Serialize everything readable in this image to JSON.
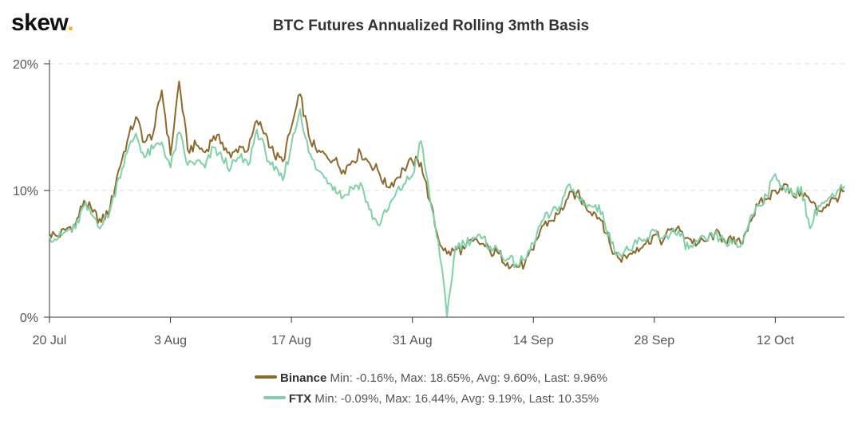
{
  "brand": {
    "name": "skew",
    "dot": "."
  },
  "chart_data": {
    "type": "line",
    "title": "BTC Futures Annualized Rolling 3mth Basis",
    "xlabel": "",
    "ylabel": "",
    "x_ticks": [
      "20 Jul",
      "3 Aug",
      "17 Aug",
      "31 Aug",
      "14 Sep",
      "28 Sep",
      "12 Oct"
    ],
    "x_range": [
      "2020-07-20",
      "2020-10-20"
    ],
    "y_ticks": [
      "0%",
      "10%",
      "20%"
    ],
    "ylim": [
      0,
      20
    ],
    "grid": "horizontal dashed",
    "legend_position": "bottom",
    "series": [
      {
        "name": "Binance",
        "color": "#8c6a2a",
        "stats": "Min: -0.16%, Max: 18.65%, Avg: 9.60%, Last: 9.96%",
        "points": [
          [
            "2020-07-20",
            6.6
          ],
          [
            "2020-07-21",
            6.4
          ],
          [
            "2020-07-22",
            7.0
          ],
          [
            "2020-07-23",
            7.3
          ],
          [
            "2020-07-24",
            9.2
          ],
          [
            "2020-07-25",
            8.3
          ],
          [
            "2020-07-26",
            7.5
          ],
          [
            "2020-07-27",
            8.6
          ],
          [
            "2020-07-28",
            11.6
          ],
          [
            "2020-07-29",
            13.9
          ],
          [
            "2020-07-30",
            15.8
          ],
          [
            "2020-07-31",
            13.8
          ],
          [
            "2020-08-01",
            14.5
          ],
          [
            "2020-08-02",
            17.9
          ],
          [
            "2020-08-03",
            12.8
          ],
          [
            "2020-08-04",
            18.6
          ],
          [
            "2020-08-05",
            13.2
          ],
          [
            "2020-08-06",
            13.6
          ],
          [
            "2020-08-07",
            13.0
          ],
          [
            "2020-08-08",
            14.3
          ],
          [
            "2020-08-09",
            13.8
          ],
          [
            "2020-08-10",
            12.6
          ],
          [
            "2020-08-11",
            13.5
          ],
          [
            "2020-08-12",
            13.2
          ],
          [
            "2020-08-13",
            15.5
          ],
          [
            "2020-08-14",
            14.5
          ],
          [
            "2020-08-15",
            12.8
          ],
          [
            "2020-08-16",
            12.3
          ],
          [
            "2020-08-17",
            15.0
          ],
          [
            "2020-08-18",
            17.6
          ],
          [
            "2020-08-19",
            14.3
          ],
          [
            "2020-08-20",
            13.0
          ],
          [
            "2020-08-21",
            12.8
          ],
          [
            "2020-08-22",
            12.4
          ],
          [
            "2020-08-23",
            11.6
          ],
          [
            "2020-08-24",
            12.3
          ],
          [
            "2020-08-25",
            13.0
          ],
          [
            "2020-08-26",
            12.2
          ],
          [
            "2020-08-27",
            11.6
          ],
          [
            "2020-08-28",
            10.3
          ],
          [
            "2020-08-29",
            10.8
          ],
          [
            "2020-08-30",
            11.7
          ],
          [
            "2020-08-31",
            12.3
          ],
          [
            "2020-09-01",
            12.2
          ],
          [
            "2020-09-02",
            9.2
          ],
          [
            "2020-09-03",
            6.2
          ],
          [
            "2020-09-04",
            5.0
          ],
          [
            "2020-09-05",
            5.3
          ],
          [
            "2020-09-06",
            5.4
          ],
          [
            "2020-09-07",
            6.0
          ],
          [
            "2020-09-08",
            5.8
          ],
          [
            "2020-09-09",
            5.2
          ],
          [
            "2020-09-10",
            5.0
          ],
          [
            "2020-09-11",
            4.3
          ],
          [
            "2020-09-12",
            4.0
          ],
          [
            "2020-09-13",
            4.2
          ],
          [
            "2020-09-14",
            5.3
          ],
          [
            "2020-09-15",
            7.2
          ],
          [
            "2020-09-16",
            7.6
          ],
          [
            "2020-09-17",
            8.2
          ],
          [
            "2020-09-18",
            9.4
          ],
          [
            "2020-09-19",
            9.8
          ],
          [
            "2020-09-20",
            8.8
          ],
          [
            "2020-09-21",
            8.3
          ],
          [
            "2020-09-22",
            7.6
          ],
          [
            "2020-09-23",
            5.4
          ],
          [
            "2020-09-24",
            4.6
          ],
          [
            "2020-09-25",
            4.9
          ],
          [
            "2020-09-26",
            5.5
          ],
          [
            "2020-09-27",
            5.8
          ],
          [
            "2020-09-28",
            6.5
          ],
          [
            "2020-09-29",
            6.0
          ],
          [
            "2020-09-30",
            7.0
          ],
          [
            "2020-10-01",
            6.8
          ],
          [
            "2020-10-02",
            6.2
          ],
          [
            "2020-10-03",
            5.8
          ],
          [
            "2020-10-04",
            6.0
          ],
          [
            "2020-10-05",
            6.6
          ],
          [
            "2020-10-06",
            6.2
          ],
          [
            "2020-10-07",
            6.0
          ],
          [
            "2020-10-08",
            5.8
          ],
          [
            "2020-10-09",
            7.5
          ],
          [
            "2020-10-10",
            8.8
          ],
          [
            "2020-10-11",
            9.3
          ],
          [
            "2020-10-12",
            10.0
          ],
          [
            "2020-10-13",
            10.5
          ],
          [
            "2020-10-14",
            9.6
          ],
          [
            "2020-10-15",
            9.9
          ],
          [
            "2020-10-16",
            9.2
          ],
          [
            "2020-10-17",
            8.4
          ],
          [
            "2020-10-18",
            8.9
          ],
          [
            "2020-10-19",
            9.4
          ],
          [
            "2020-10-20",
            9.96
          ]
        ]
      },
      {
        "name": "FTX",
        "color": "#7fd1a8",
        "stats": "Min: -0.09%, Max: 16.44%, Avg: 9.19%, Last: 10.35%",
        "points": [
          [
            "2020-07-20",
            6.4
          ],
          [
            "2020-07-21",
            6.2
          ],
          [
            "2020-07-22",
            6.8
          ],
          [
            "2020-07-23",
            7.0
          ],
          [
            "2020-07-24",
            8.8
          ],
          [
            "2020-07-25",
            8.0
          ],
          [
            "2020-07-26",
            7.2
          ],
          [
            "2020-07-27",
            8.4
          ],
          [
            "2020-07-28",
            11.0
          ],
          [
            "2020-07-29",
            13.0
          ],
          [
            "2020-07-30",
            14.5
          ],
          [
            "2020-07-31",
            12.6
          ],
          [
            "2020-08-01",
            13.3
          ],
          [
            "2020-08-02",
            13.8
          ],
          [
            "2020-08-03",
            11.8
          ],
          [
            "2020-08-04",
            14.6
          ],
          [
            "2020-08-05",
            12.0
          ],
          [
            "2020-08-06",
            12.3
          ],
          [
            "2020-08-07",
            11.8
          ],
          [
            "2020-08-08",
            13.4
          ],
          [
            "2020-08-09",
            12.5
          ],
          [
            "2020-08-10",
            11.8
          ],
          [
            "2020-08-11",
            12.6
          ],
          [
            "2020-08-12",
            12.0
          ],
          [
            "2020-08-13",
            14.8
          ],
          [
            "2020-08-14",
            13.0
          ],
          [
            "2020-08-15",
            11.6
          ],
          [
            "2020-08-16",
            10.8
          ],
          [
            "2020-08-17",
            13.6
          ],
          [
            "2020-08-18",
            16.4
          ],
          [
            "2020-08-19",
            13.0
          ],
          [
            "2020-08-20",
            11.6
          ],
          [
            "2020-08-21",
            11.0
          ],
          [
            "2020-08-22",
            10.3
          ],
          [
            "2020-08-23",
            9.5
          ],
          [
            "2020-08-24",
            10.2
          ],
          [
            "2020-08-25",
            10.6
          ],
          [
            "2020-08-26",
            8.5
          ],
          [
            "2020-08-27",
            7.3
          ],
          [
            "2020-08-28",
            8.3
          ],
          [
            "2020-08-29",
            9.6
          ],
          [
            "2020-08-30",
            10.5
          ],
          [
            "2020-08-31",
            11.2
          ],
          [
            "2020-09-01",
            13.9
          ],
          [
            "2020-09-02",
            9.5
          ],
          [
            "2020-09-03",
            6.0
          ],
          [
            "2020-09-04",
            0.1
          ],
          [
            "2020-09-05",
            5.6
          ],
          [
            "2020-09-06",
            5.8
          ],
          [
            "2020-09-07",
            6.3
          ],
          [
            "2020-09-08",
            6.2
          ],
          [
            "2020-09-09",
            5.6
          ],
          [
            "2020-09-10",
            5.2
          ],
          [
            "2020-09-11",
            4.6
          ],
          [
            "2020-09-12",
            4.2
          ],
          [
            "2020-09-13",
            4.5
          ],
          [
            "2020-09-14",
            5.8
          ],
          [
            "2020-09-15",
            7.6
          ],
          [
            "2020-09-16",
            8.1
          ],
          [
            "2020-09-17",
            8.7
          ],
          [
            "2020-09-18",
            10.4
          ],
          [
            "2020-09-19",
            9.6
          ],
          [
            "2020-09-20",
            9.0
          ],
          [
            "2020-09-21",
            8.7
          ],
          [
            "2020-09-22",
            8.3
          ],
          [
            "2020-09-23",
            5.8
          ],
          [
            "2020-09-24",
            5.0
          ],
          [
            "2020-09-25",
            5.3
          ],
          [
            "2020-09-26",
            5.8
          ],
          [
            "2020-09-27",
            6.0
          ],
          [
            "2020-09-28",
            6.8
          ],
          [
            "2020-09-29",
            6.2
          ],
          [
            "2020-09-30",
            6.8
          ],
          [
            "2020-10-01",
            6.4
          ],
          [
            "2020-10-02",
            5.4
          ],
          [
            "2020-10-03",
            5.9
          ],
          [
            "2020-10-04",
            6.1
          ],
          [
            "2020-10-05",
            6.5
          ],
          [
            "2020-10-06",
            6.0
          ],
          [
            "2020-10-07",
            5.8
          ],
          [
            "2020-10-08",
            5.6
          ],
          [
            "2020-10-09",
            7.6
          ],
          [
            "2020-10-10",
            8.9
          ],
          [
            "2020-10-11",
            9.6
          ],
          [
            "2020-10-12",
            11.3
          ],
          [
            "2020-10-13",
            10.2
          ],
          [
            "2020-10-14",
            9.6
          ],
          [
            "2020-10-15",
            10.3
          ],
          [
            "2020-10-16",
            7.0
          ],
          [
            "2020-10-17",
            8.8
          ],
          [
            "2020-10-18",
            9.2
          ],
          [
            "2020-10-19",
            9.6
          ],
          [
            "2020-10-20",
            10.35
          ]
        ]
      }
    ]
  }
}
